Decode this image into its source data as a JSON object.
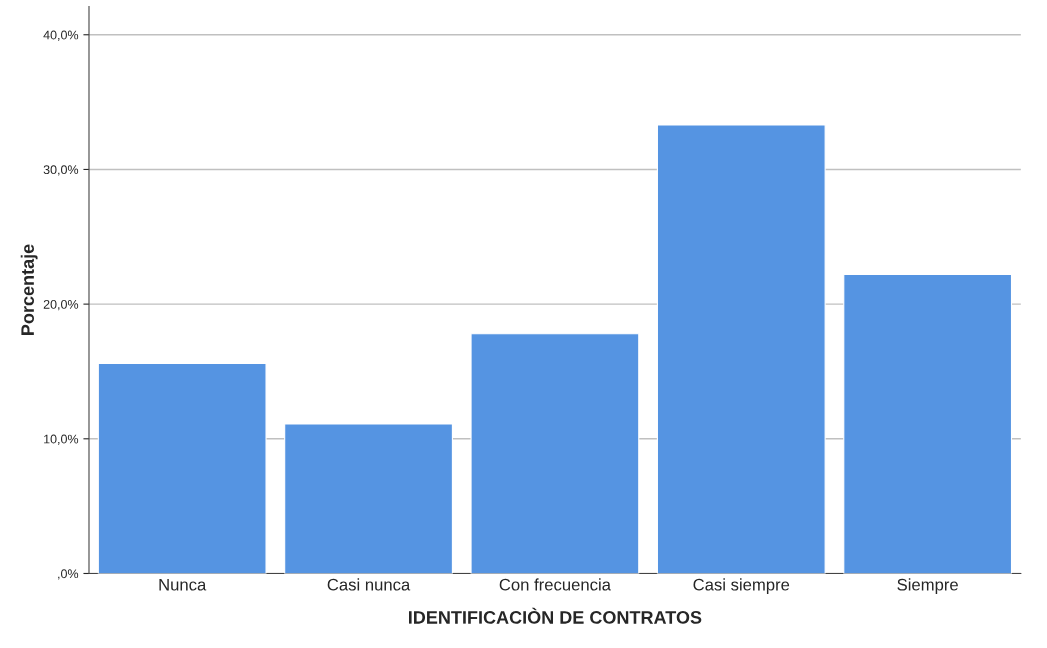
{
  "chart_data": {
    "type": "bar",
    "xlabel": "IDENTIFICACIÒN DE CONTRATOS",
    "ylabel": "Porcentaje",
    "categories": [
      "Nunca",
      "Casi nunca",
      "Con frecuencia",
      "Casi siempre",
      "Siempre"
    ],
    "values": [
      15.6,
      11.1,
      17.8,
      33.3,
      22.2
    ],
    "color": "#5594e2",
    "ylim": [
      0,
      42.1
    ],
    "yticks": [
      {
        "value": 0,
        "label": ",0%"
      },
      {
        "value": 10,
        "label": "10,0%"
      },
      {
        "value": 20,
        "label": "20,0%"
      },
      {
        "value": 30,
        "label": "30,0%"
      },
      {
        "value": 40,
        "label": "40,0%"
      }
    ],
    "grid": "y"
  }
}
